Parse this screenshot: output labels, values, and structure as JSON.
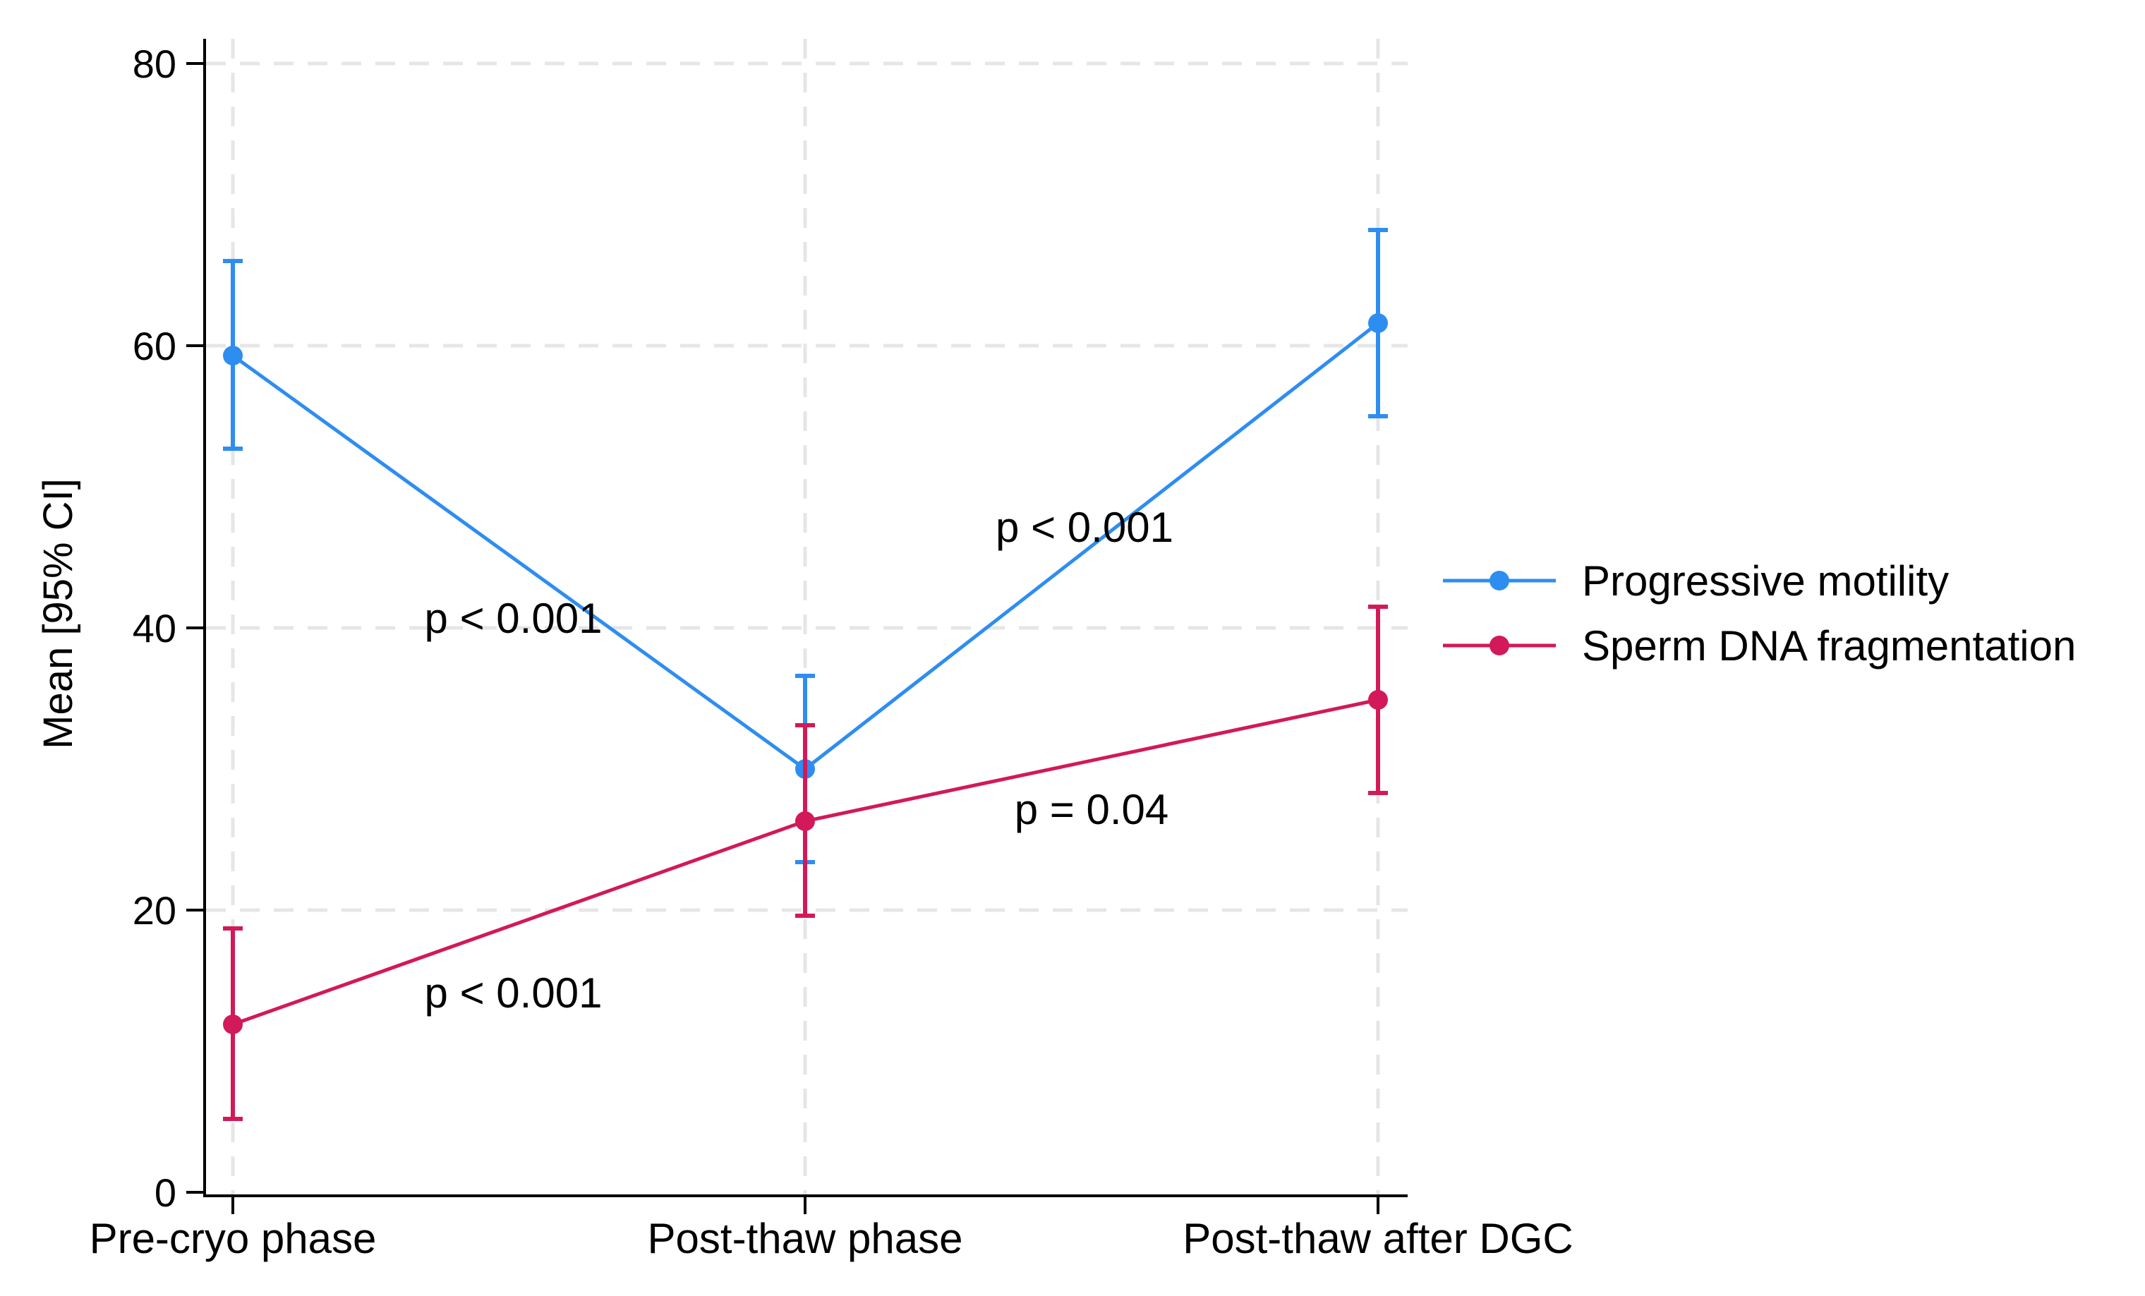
{
  "chart_data": {
    "type": "line",
    "title": "",
    "xlabel": "",
    "ylabel": "Mean [95% CI]",
    "ylim": [
      0,
      80
    ],
    "yticks": [
      0,
      20,
      40,
      60,
      80
    ],
    "grid": true,
    "legend_position": "right",
    "categories": [
      "Pre-cryo phase",
      "Post-thaw phase",
      "Post-thaw after DGC"
    ],
    "series": [
      {
        "name": "Progressive motility",
        "color": "#2e8df0",
        "values": [
          59.3,
          30.0,
          61.6
        ],
        "ci_low": [
          52.7,
          23.4,
          55.0
        ],
        "ci_high": [
          66.0,
          36.6,
          68.2
        ]
      },
      {
        "name": "Sperm DNA fragmentation",
        "color": "#d2195a",
        "values": [
          11.9,
          26.3,
          34.9
        ],
        "ci_low": [
          5.2,
          19.6,
          28.3
        ],
        "ci_high": [
          18.7,
          33.1,
          41.5
        ]
      }
    ],
    "annotations": [
      {
        "text": "p < 0.001",
        "series": "Progressive motility",
        "segment": [
          0,
          1
        ]
      },
      {
        "text": "p < 0.001",
        "series": "Progressive motility",
        "segment": [
          1,
          2
        ]
      },
      {
        "text": "p < 0.001",
        "series": "Sperm DNA fragmentation",
        "segment": [
          0,
          1
        ]
      },
      {
        "text": "p = 0.04",
        "series": "Sperm DNA fragmentation",
        "segment": [
          1,
          2
        ]
      }
    ]
  }
}
